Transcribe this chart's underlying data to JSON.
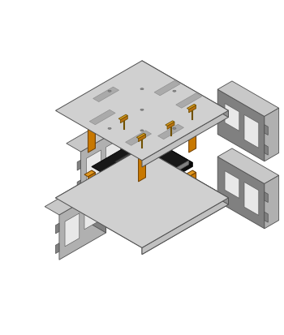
{
  "bg_color": "#ffffff",
  "plate_color": "#c0c0c0",
  "plate_light": "#d0d0d0",
  "plate_dark": "#909090",
  "plate_edge": "#505050",
  "standoff_right": "#a06000",
  "standoff_left": "#c87800",
  "standoff_top": "#e09820",
  "standoff_edge": "#704000",
  "screw_top": "#e0a020",
  "screw_side": "#b87010",
  "screw_edge": "#705000",
  "rubber_col": "#383838",
  "rubber_edge": "#1a1a1a",
  "pcb_top": "#181818",
  "pcb_side": "#0d0d0d",
  "pcb_edge": "#000000",
  "chip_top": "#404040",
  "chip_side": "#303030",
  "conn_col": "#707070",
  "clip_front": "#b0b0b0",
  "clip_top_col": "#c8c8c8",
  "clip_dark": "#808080",
  "clip_edge": "#505050",
  "figsize": [
    3.5,
    4.13
  ],
  "dpi": 100
}
